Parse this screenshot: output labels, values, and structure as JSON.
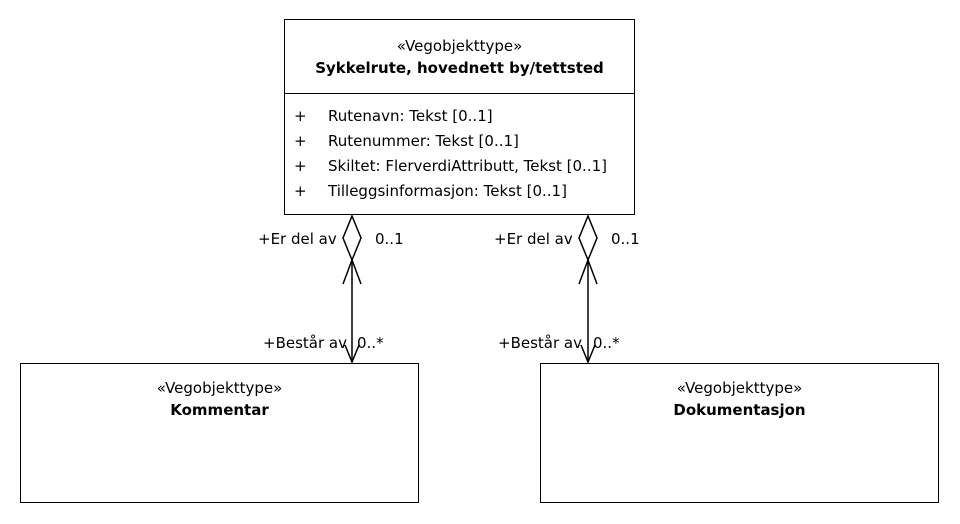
{
  "classes": {
    "main": {
      "stereotype": "«Vegobjekttype»",
      "name": "Sykkelrute, hovednett by/tettsted",
      "attributes": [
        {
          "visibility": "+",
          "text": "Rutenavn: Tekst [0..1]"
        },
        {
          "visibility": "+",
          "text": "Rutenummer: Tekst [0..1]"
        },
        {
          "visibility": "+",
          "text": "Skiltet: FlerverdiAttributt, Tekst [0..1]"
        },
        {
          "visibility": "+",
          "text": "Tilleggsinformasjon: Tekst [0..1]"
        }
      ]
    },
    "kommentar": {
      "stereotype": "«Vegobjekttype»",
      "name": "Kommentar"
    },
    "dokumentasjon": {
      "stereotype": "«Vegobjekttype»",
      "name": "Dokumentasjon"
    }
  },
  "associations": {
    "left": {
      "source_role": "+Er del av",
      "source_multiplicity": "0..1",
      "target_role": "+Består av",
      "target_multiplicity": "0..*"
    },
    "right": {
      "source_role": "+Er del av",
      "source_multiplicity": "0..1",
      "target_role": "+Består av",
      "target_multiplicity": "0..*"
    }
  }
}
